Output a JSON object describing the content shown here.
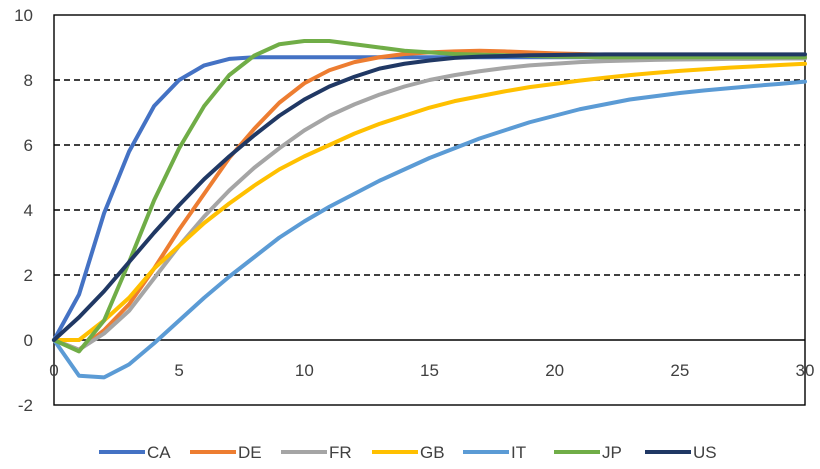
{
  "chart_data": {
    "type": "line",
    "title": "",
    "xlabel": "",
    "ylabel": "",
    "xlim": [
      0,
      30
    ],
    "ylim": [
      -2,
      10
    ],
    "x_ticks": [
      0,
      5,
      10,
      15,
      20,
      25,
      30
    ],
    "y_ticks": [
      -2,
      0,
      2,
      4,
      6,
      8,
      10
    ],
    "grid": "horizontal dashed lines at 2, 4, 6, 8",
    "legend_position": "bottom",
    "x": [
      0,
      1,
      2,
      3,
      4,
      5,
      6,
      7,
      8,
      9,
      10,
      11,
      12,
      13,
      14,
      15,
      16,
      17,
      18,
      19,
      20,
      21,
      22,
      23,
      24,
      25,
      26,
      27,
      28,
      29,
      30
    ],
    "series": [
      {
        "name": "CA",
        "color": "#4472c4",
        "values": [
          0,
          1.4,
          3.9,
          5.8,
          7.2,
          8.0,
          8.45,
          8.65,
          8.7,
          8.7,
          8.7,
          8.7,
          8.7,
          8.7,
          8.7,
          8.7,
          8.7,
          8.7,
          8.7,
          8.7,
          8.7,
          8.7,
          8.7,
          8.7,
          8.7,
          8.7,
          8.7,
          8.7,
          8.7,
          8.7,
          8.7
        ]
      },
      {
        "name": "DE",
        "color": "#ed7d31",
        "values": [
          0,
          -0.3,
          0.3,
          1.1,
          2.2,
          3.4,
          4.5,
          5.6,
          6.5,
          7.3,
          7.9,
          8.3,
          8.55,
          8.7,
          8.8,
          8.85,
          8.88,
          8.9,
          8.88,
          8.85,
          8.82,
          8.8,
          8.78,
          8.76,
          8.75,
          8.74,
          8.73,
          8.72,
          8.72,
          8.72,
          8.72
        ]
      },
      {
        "name": "FR",
        "color": "#a5a5a5",
        "values": [
          0,
          -0.3,
          0.2,
          0.9,
          1.9,
          2.9,
          3.8,
          4.6,
          5.3,
          5.9,
          6.45,
          6.9,
          7.25,
          7.55,
          7.8,
          8.0,
          8.15,
          8.27,
          8.37,
          8.45,
          8.5,
          8.55,
          8.58,
          8.6,
          8.62,
          8.63,
          8.64,
          8.65,
          8.65,
          8.66,
          8.66
        ]
      },
      {
        "name": "GB",
        "color": "#ffc000",
        "values": [
          0,
          0,
          0.6,
          1.3,
          2.2,
          2.9,
          3.6,
          4.2,
          4.75,
          5.25,
          5.65,
          6.0,
          6.35,
          6.65,
          6.9,
          7.15,
          7.35,
          7.5,
          7.65,
          7.78,
          7.88,
          7.98,
          8.07,
          8.15,
          8.22,
          8.28,
          8.33,
          8.38,
          8.42,
          8.46,
          8.5
        ]
      },
      {
        "name": "IT",
        "color": "#5b9bd5",
        "values": [
          0,
          -1.1,
          -1.15,
          -0.75,
          -0.1,
          0.6,
          1.3,
          1.95,
          2.55,
          3.15,
          3.65,
          4.1,
          4.5,
          4.9,
          5.25,
          5.6,
          5.9,
          6.2,
          6.45,
          6.7,
          6.9,
          7.1,
          7.25,
          7.4,
          7.5,
          7.6,
          7.68,
          7.75,
          7.82,
          7.88,
          7.95
        ]
      },
      {
        "name": "JP",
        "color": "#70ad47",
        "values": [
          0,
          -0.35,
          0.6,
          2.4,
          4.3,
          5.9,
          7.2,
          8.15,
          8.75,
          9.1,
          9.2,
          9.2,
          9.1,
          9.0,
          8.9,
          8.85,
          8.8,
          8.78,
          8.76,
          8.74,
          8.72,
          8.71,
          8.7,
          8.7,
          8.7,
          8.7,
          8.7,
          8.7,
          8.7,
          8.7,
          8.7
        ]
      },
      {
        "name": "US",
        "color": "#203864",
        "values": [
          0,
          0.7,
          1.5,
          2.4,
          3.3,
          4.15,
          4.95,
          5.65,
          6.3,
          6.9,
          7.4,
          7.8,
          8.1,
          8.35,
          8.5,
          8.6,
          8.68,
          8.72,
          8.74,
          8.76,
          8.77,
          8.78,
          8.79,
          8.79,
          8.79,
          8.79,
          8.79,
          8.79,
          8.79,
          8.79,
          8.79
        ]
      }
    ]
  }
}
